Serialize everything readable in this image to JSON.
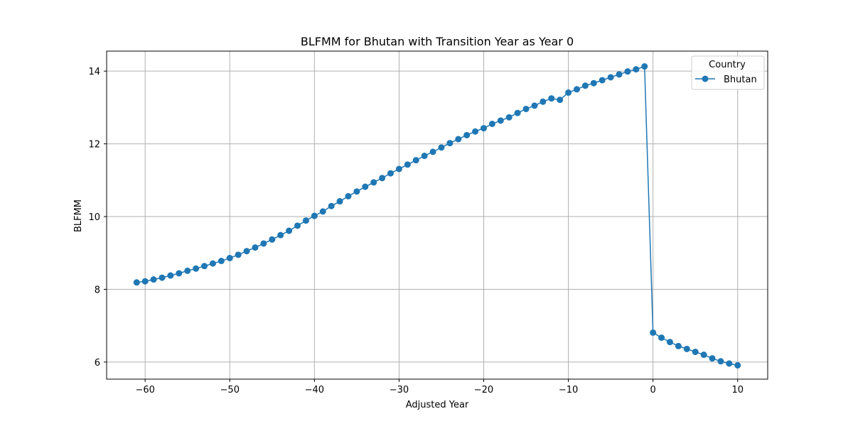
{
  "chart_data": {
    "type": "line",
    "title": "BLFMM for Bhutan with Transition Year as Year 0",
    "xlabel": "Adjusted Year",
    "ylabel": "BLFMM",
    "xlim": [
      -64.55,
      13.55
    ],
    "ylim": [
      5.53,
      14.55
    ],
    "xticks": [
      -60,
      -50,
      -40,
      -30,
      -20,
      -10,
      0,
      10
    ],
    "xtick_labels": [
      "−60",
      "−50",
      "−40",
      "−30",
      "−20",
      "−10",
      "0",
      "10"
    ],
    "yticks": [
      6,
      8,
      10,
      12,
      14
    ],
    "ytick_labels": [
      "6",
      "8",
      "10",
      "12",
      "14"
    ],
    "grid": true,
    "legend": {
      "title": "Country",
      "placement": "top-right",
      "entries": [
        "Bhutan"
      ]
    },
    "colors": {
      "series": "#1f77b4",
      "grid": "#b0b0b0",
      "axis": "#000000"
    },
    "series": [
      {
        "name": "Bhutan",
        "marker": "circle",
        "x": [
          -61,
          -60,
          -59,
          -58,
          -57,
          -56,
          -55,
          -54,
          -53,
          -52,
          -51,
          -50,
          -49,
          -48,
          -47,
          -46,
          -45,
          -44,
          -43,
          -42,
          -41,
          -40,
          -39,
          -38,
          -37,
          -36,
          -35,
          -34,
          -33,
          -32,
          -31,
          -30,
          -29,
          -28,
          -27,
          -26,
          -25,
          -24,
          -23,
          -22,
          -21,
          -20,
          -19,
          -18,
          -17,
          -16,
          -15,
          -14,
          -13,
          -12,
          -11,
          -10,
          -9,
          -8,
          -7,
          -6,
          -5,
          -4,
          -3,
          -2,
          -1,
          0,
          1,
          2,
          3,
          4,
          5,
          6,
          7,
          8,
          9,
          10
        ],
        "y": [
          8.19,
          8.22,
          8.27,
          8.32,
          8.38,
          8.44,
          8.51,
          8.57,
          8.64,
          8.71,
          8.78,
          8.86,
          8.95,
          9.05,
          9.15,
          9.26,
          9.37,
          9.49,
          9.61,
          9.75,
          9.89,
          10.02,
          10.14,
          10.29,
          10.42,
          10.56,
          10.69,
          10.82,
          10.94,
          11.06,
          11.19,
          11.31,
          11.43,
          11.55,
          11.67,
          11.78,
          11.9,
          12.02,
          12.13,
          12.24,
          12.34,
          12.43,
          12.55,
          12.64,
          12.73,
          12.85,
          12.96,
          13.05,
          13.16,
          13.25,
          13.21,
          13.41,
          13.5,
          13.6,
          13.67,
          13.75,
          13.83,
          13.91,
          13.99,
          14.05,
          14.13,
          6.81,
          6.67,
          6.55,
          6.44,
          6.36,
          6.28,
          6.2,
          6.1,
          6.02,
          5.96,
          5.91
        ]
      }
    ]
  }
}
